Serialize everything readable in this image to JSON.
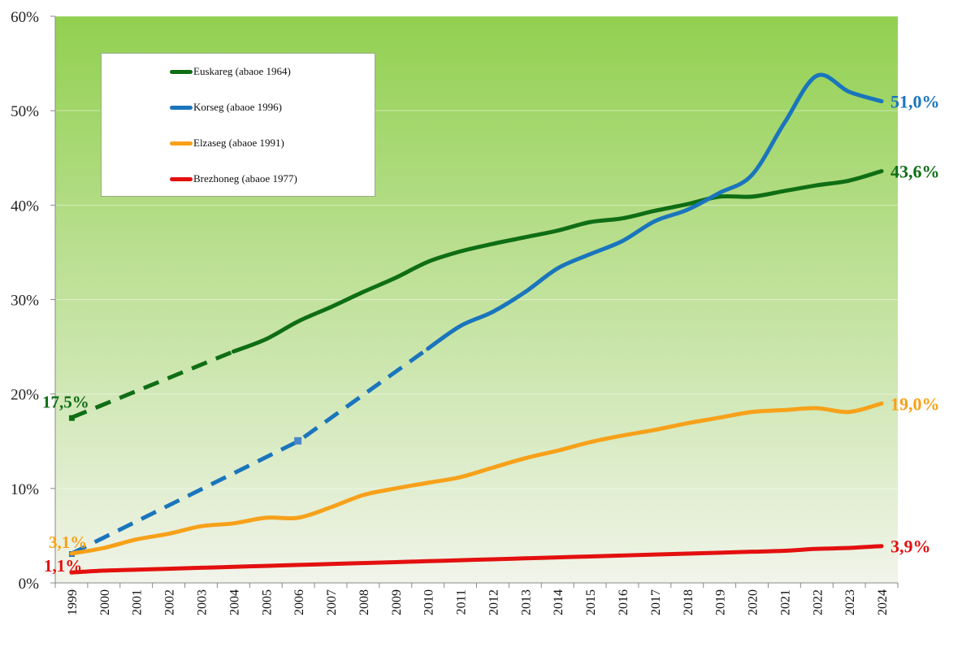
{
  "chart_data": {
    "type": "line",
    "title": "",
    "xlabel": "",
    "ylabel": "",
    "ylim": [
      0,
      60
    ],
    "yticks": [
      "0%",
      "10%",
      "20%",
      "30%",
      "40%",
      "50%",
      "60%"
    ],
    "grid": true,
    "legend_position": "top-left",
    "background": {
      "top": "#92d050",
      "bottom": "#f1f4ea"
    },
    "categories": [
      "1999",
      "2000",
      "2001",
      "2002",
      "2003",
      "2004",
      "2005",
      "2006",
      "2007",
      "2008",
      "2009",
      "2010",
      "2011",
      "2012",
      "2013",
      "2014",
      "2015",
      "2016",
      "2017",
      "2018",
      "2019",
      "2020",
      "2021",
      "2022",
      "2023",
      "2024"
    ],
    "series": [
      {
        "name": "Euskareg (abaoe 1964)",
        "color": "#0f6e14",
        "values": [
          17.5,
          null,
          null,
          null,
          null,
          24.5,
          25.8,
          27.7,
          29.2,
          30.8,
          32.3,
          34.0,
          35.1,
          35.9,
          36.6,
          37.3,
          38.2,
          38.6,
          39.4,
          40.1,
          40.9,
          40.9,
          41.5,
          42.1,
          42.6,
          43.6
        ],
        "dashed_until": "2004",
        "start_label": "17,5%",
        "end_label": "43,6%"
      },
      {
        "name": "Korseg (abaoe 1996)",
        "color": "#1a75bc",
        "values": [
          3.1,
          null,
          null,
          null,
          null,
          null,
          null,
          15.0,
          null,
          null,
          null,
          24.8,
          27.2,
          28.7,
          30.8,
          33.3,
          34.8,
          36.2,
          38.3,
          39.5,
          41.3,
          43.2,
          48.7,
          53.7,
          52.0,
          51.0
        ],
        "dashed_until": "2010",
        "marker_year": "2006",
        "end_label": "51,0%"
      },
      {
        "name": "Elzaseg (abaoe 1991)",
        "color": "#f7a11a",
        "values": [
          3.1,
          3.7,
          4.6,
          5.2,
          6.0,
          6.3,
          6.9,
          6.9,
          8.0,
          9.3,
          10.0,
          10.6,
          11.2,
          12.2,
          13.2,
          14.0,
          14.9,
          15.6,
          16.2,
          16.9,
          17.5,
          18.1,
          18.3,
          18.5,
          18.1,
          19.0
        ],
        "start_label": "3,1%",
        "end_label": "19,0%"
      },
      {
        "name": "Brezhoneg (abaoe 1977)",
        "color": "#e3100f",
        "values": [
          1.1,
          1.3,
          1.4,
          1.5,
          1.6,
          1.7,
          1.8,
          1.9,
          2.0,
          2.1,
          2.2,
          2.3,
          2.4,
          2.5,
          2.6,
          2.7,
          2.8,
          2.9,
          3.0,
          3.1,
          3.2,
          3.3,
          3.4,
          3.6,
          3.7,
          3.9
        ],
        "start_label": "1,1%",
        "end_label": "3,9%"
      }
    ]
  }
}
